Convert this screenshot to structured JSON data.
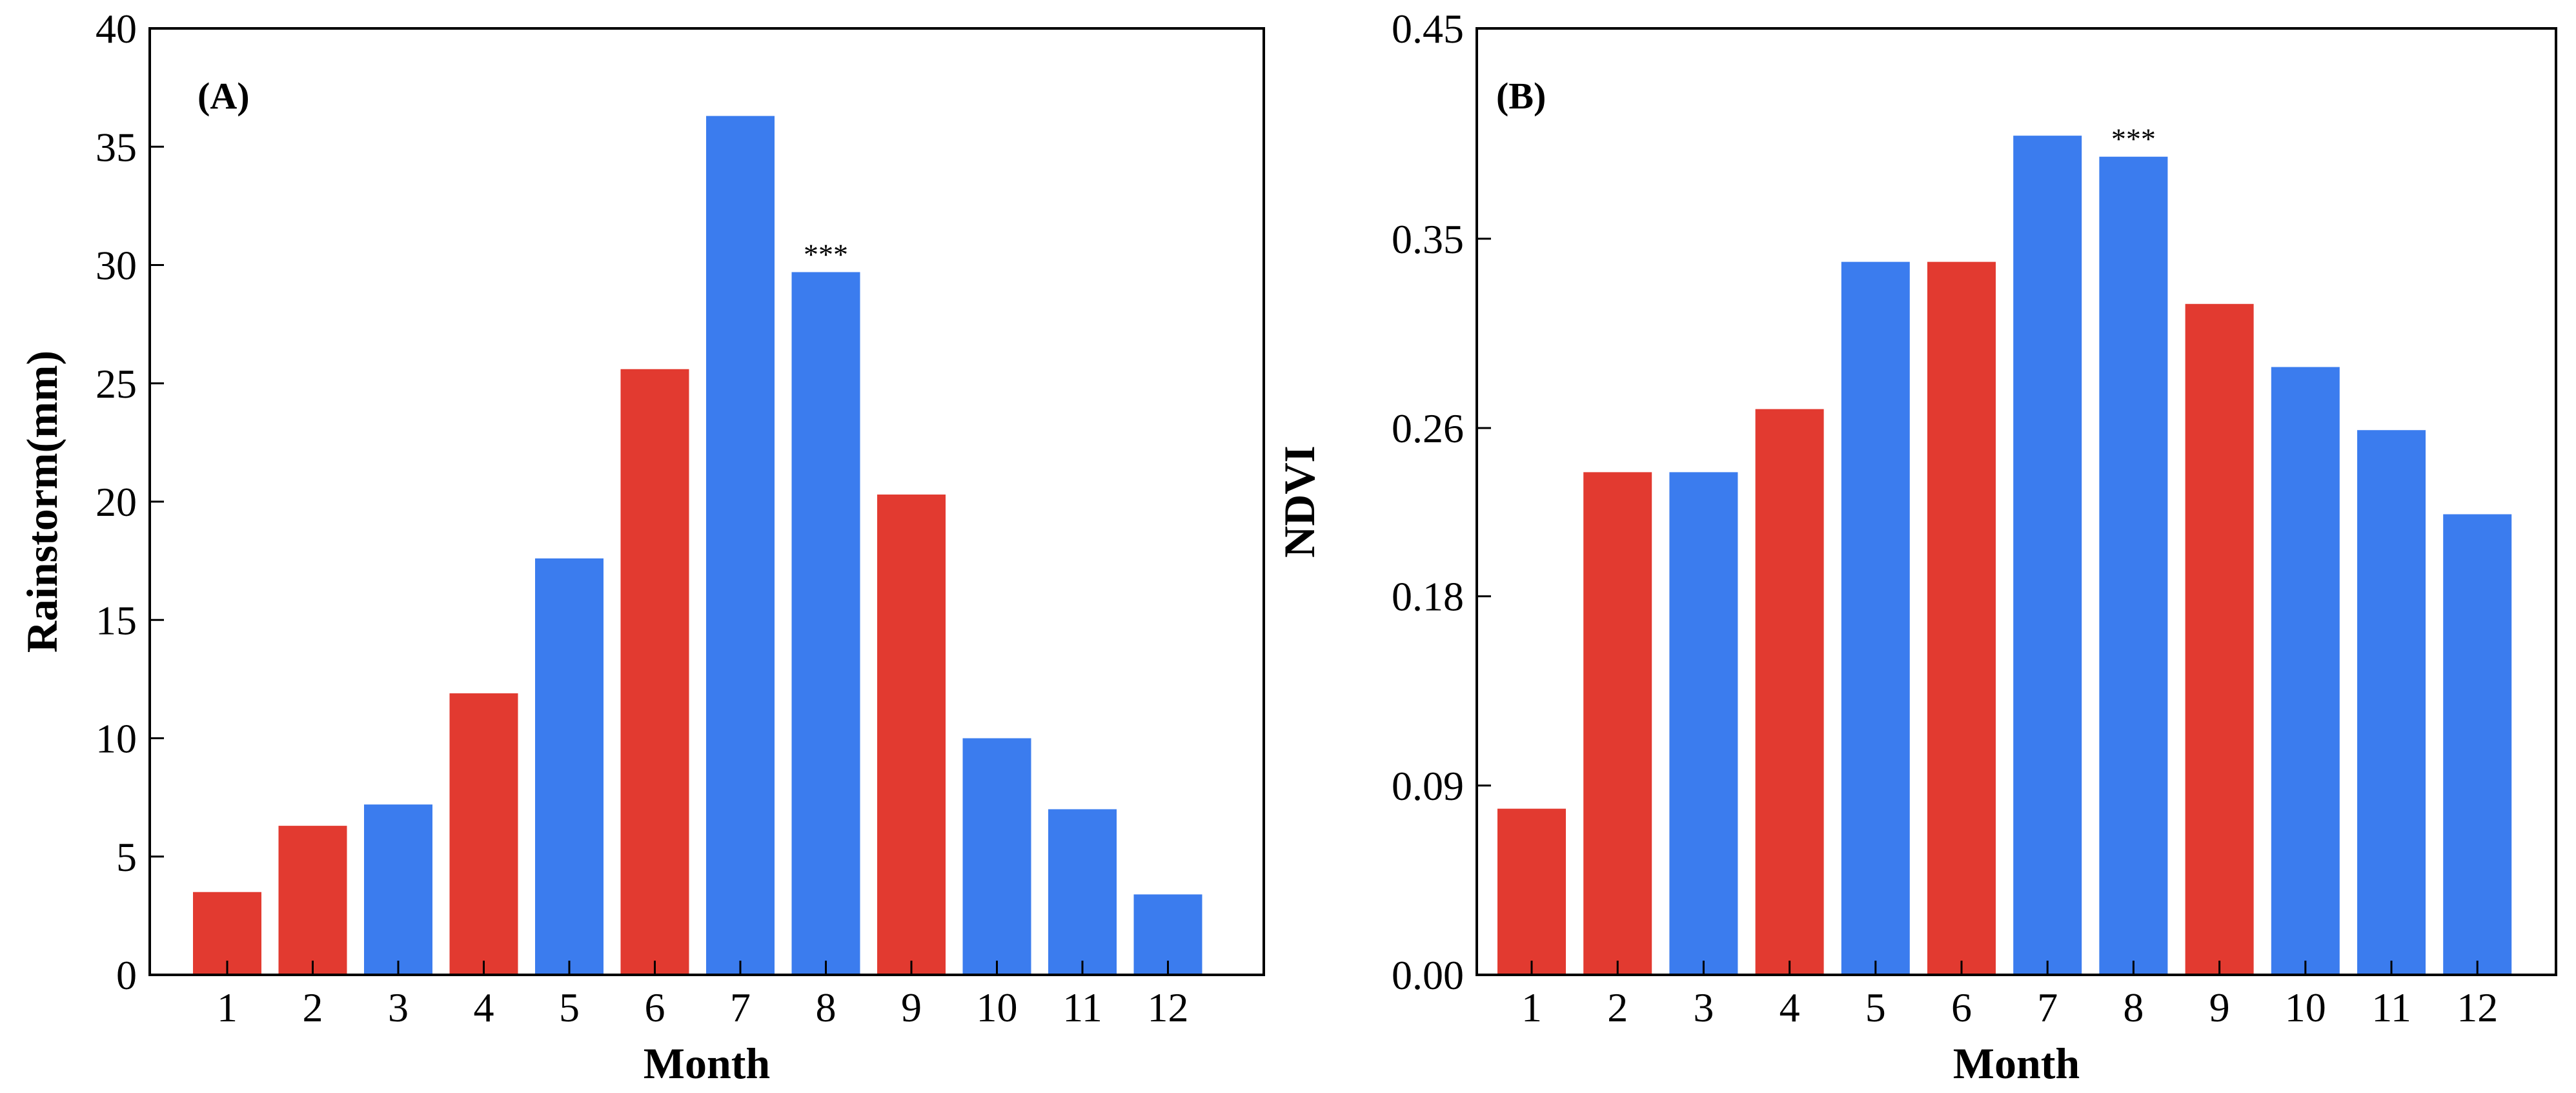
{
  "colors": {
    "red": "#E23A30",
    "blue": "#3B7CEE",
    "axis": "#000000"
  },
  "chart_data": [
    {
      "id": "A",
      "type": "bar",
      "panel_label": "(A)",
      "title": "",
      "xlabel": "Month",
      "ylabel": "Rainstorm(mm)",
      "ylim": [
        0,
        40
      ],
      "yticks": [
        0,
        5,
        10,
        15,
        20,
        25,
        30,
        35,
        40
      ],
      "ytick_labels": [
        "0",
        "5",
        "10",
        "15",
        "20",
        "25",
        "30",
        "35",
        "40"
      ],
      "categories": [
        "1",
        "2",
        "3",
        "4",
        "5",
        "6",
        "7",
        "8",
        "9",
        "10",
        "11",
        "12"
      ],
      "values": [
        3.5,
        6.3,
        7.2,
        11.9,
        17.6,
        25.6,
        36.3,
        29.7,
        20.3,
        10.0,
        7.0,
        3.4
      ],
      "bar_colors": [
        "red",
        "red",
        "blue",
        "red",
        "blue",
        "red",
        "blue",
        "blue",
        "red",
        "blue",
        "blue",
        "blue"
      ],
      "annotations": [
        {
          "category": "8",
          "text": "***"
        }
      ],
      "grid": false
    },
    {
      "id": "B",
      "type": "bar",
      "panel_label": "(B)",
      "title": "",
      "xlabel": "Month",
      "ylabel": "NDVI",
      "ylim": [
        0,
        0.45
      ],
      "yticks": [
        0,
        0.09,
        0.18,
        0.26,
        0.35,
        0.45
      ],
      "ytick_labels": [
        "0.00",
        "0.09",
        "0.18",
        "0.26",
        "0.35",
        "0.45"
      ],
      "categories": [
        "1",
        "2",
        "3",
        "4",
        "5",
        "6",
        "7",
        "8",
        "9",
        "10",
        "11",
        "12"
      ],
      "values": [
        0.079,
        0.239,
        0.239,
        0.269,
        0.339,
        0.339,
        0.399,
        0.389,
        0.319,
        0.289,
        0.259,
        0.219
      ],
      "bar_colors": [
        "red",
        "red",
        "blue",
        "red",
        "blue",
        "red",
        "blue",
        "blue",
        "red",
        "blue",
        "blue",
        "blue"
      ],
      "annotations": [
        {
          "category": "8",
          "text": "***"
        }
      ],
      "grid": false
    }
  ]
}
